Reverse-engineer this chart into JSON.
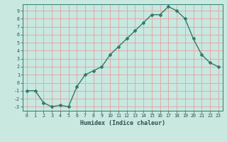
{
  "x": [
    0,
    1,
    2,
    3,
    4,
    5,
    6,
    7,
    8,
    9,
    10,
    11,
    12,
    13,
    14,
    15,
    16,
    17,
    18,
    19,
    20,
    21,
    22,
    23
  ],
  "y": [
    -1.0,
    -1.0,
    -2.5,
    -3.0,
    -2.8,
    -3.0,
    -0.5,
    1.0,
    1.5,
    2.0,
    3.5,
    4.5,
    5.5,
    6.5,
    7.5,
    8.5,
    8.5,
    9.5,
    9.0,
    8.0,
    5.5,
    3.5,
    2.5,
    2.0
  ],
  "xlabel": "Humidex (Indice chaleur)",
  "ylim": [
    -3.5,
    9.8
  ],
  "xlim": [
    -0.5,
    23.5
  ],
  "bg_color": "#c8e8e0",
  "line_color": "#2e7d6e",
  "grid_color": "#e8a0a0",
  "label_color": "#2e5050",
  "tick_color": "#2e5050"
}
